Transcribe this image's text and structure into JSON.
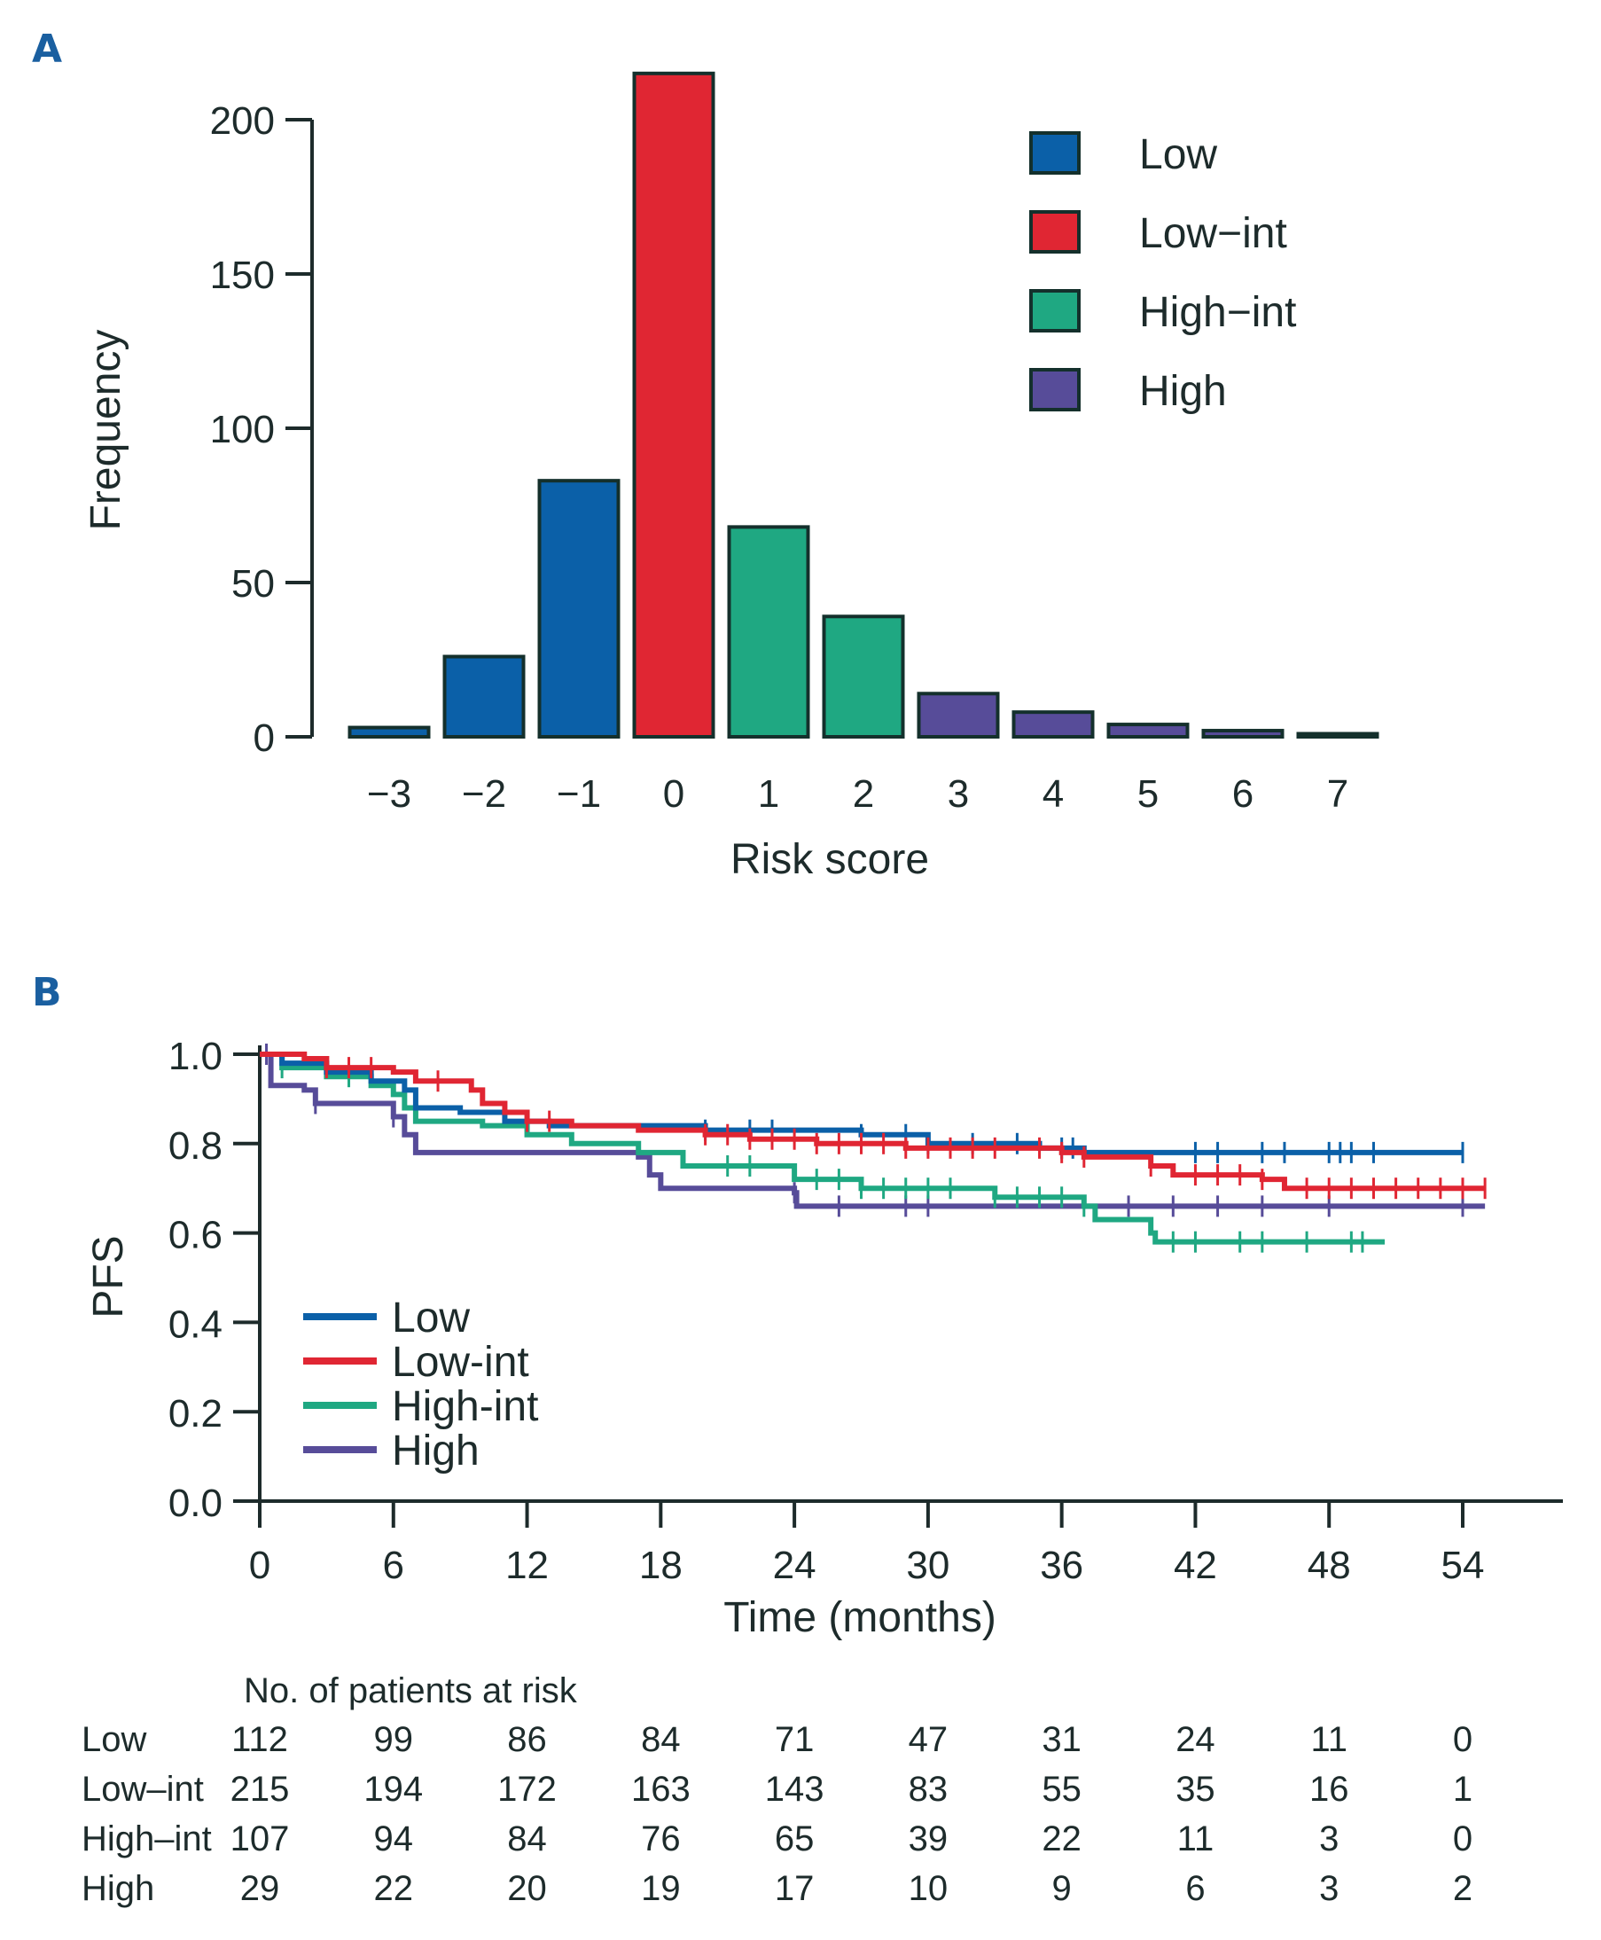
{
  "panels": {
    "a": "A",
    "b": "B"
  },
  "chart_data": [
    {
      "type": "bar",
      "title": "",
      "xlabel": "Risk score",
      "ylabel": "Frequency",
      "ylim": [
        0,
        200
      ],
      "yticks": [
        "0",
        "50",
        "100",
        "150",
        "200"
      ],
      "categories": [
        "−3",
        "−2",
        "−1",
        "0",
        "1",
        "2",
        "3",
        "4",
        "5",
        "6",
        "7"
      ],
      "values": [
        3,
        26,
        83,
        215,
        68,
        39,
        14,
        8,
        4,
        2,
        1
      ],
      "groups": [
        "Low",
        "Low",
        "Low",
        "Low−int",
        "High−int",
        "High−int",
        "High",
        "High",
        "High",
        "High",
        "High"
      ],
      "legend": [
        {
          "label": "Low",
          "color": "#0b60a8"
        },
        {
          "label": "Low−int",
          "color": "#e02633"
        },
        {
          "label": "High−int",
          "color": "#1fa882"
        },
        {
          "label": "High",
          "color": "#574c99"
        }
      ],
      "legend_position": "top-right"
    },
    {
      "type": "line",
      "subtype": "kaplan-meier",
      "xlabel": "Time (months)",
      "ylabel": "PFS",
      "xlim": [
        0,
        54
      ],
      "ylim": [
        0,
        1
      ],
      "xticks": [
        "0",
        "6",
        "12",
        "18",
        "24",
        "30",
        "36",
        "42",
        "48",
        "54"
      ],
      "yticks": [
        "0.0",
        "0.2",
        "0.4",
        "0.6",
        "0.8",
        "1.0"
      ],
      "legend_position": "bottom-left",
      "series": [
        {
          "name": "Low",
          "color": "#0b60a8",
          "steps": [
            [
              0,
              1
            ],
            [
              1,
              0.98
            ],
            [
              3,
              0.96
            ],
            [
              5,
              0.94
            ],
            [
              6.5,
              0.92
            ],
            [
              7,
              0.88
            ],
            [
              9,
              0.87
            ],
            [
              11,
              0.85
            ],
            [
              13,
              0.84
            ],
            [
              20,
              0.83
            ],
            [
              27,
              0.82
            ],
            [
              30,
              0.8
            ],
            [
              35,
              0.79
            ],
            [
              37,
              0.78
            ],
            [
              54,
              0.78
            ]
          ],
          "censors": [
            20,
            22,
            23,
            27,
            29,
            30,
            32,
            34,
            36,
            36.5,
            42,
            43,
            45,
            46,
            48,
            48.5,
            49,
            50,
            54
          ]
        },
        {
          "name": "Low-int",
          "color": "#e02633",
          "steps": [
            [
              0,
              1
            ],
            [
              2,
              0.99
            ],
            [
              3,
              0.97
            ],
            [
              6,
              0.96
            ],
            [
              7,
              0.94
            ],
            [
              9.5,
              0.92
            ],
            [
              10,
              0.89
            ],
            [
              11,
              0.87
            ],
            [
              12,
              0.85
            ],
            [
              14,
              0.84
            ],
            [
              17,
              0.83
            ],
            [
              20,
              0.82
            ],
            [
              22,
              0.81
            ],
            [
              25,
              0.8
            ],
            [
              29,
              0.79
            ],
            [
              36,
              0.78
            ],
            [
              37,
              0.77
            ],
            [
              40,
              0.75
            ],
            [
              41,
              0.73
            ],
            [
              45,
              0.72
            ],
            [
              46,
              0.7
            ],
            [
              55,
              0.7
            ]
          ],
          "censors": [
            3,
            4,
            5,
            8,
            12,
            13,
            20,
            21,
            22,
            23,
            24,
            25,
            26,
            27,
            28,
            29,
            30,
            31,
            32,
            33,
            35,
            36,
            37,
            40,
            42,
            43,
            44,
            45,
            47,
            48,
            49,
            50,
            51,
            52,
            53,
            54,
            55
          ]
        },
        {
          "name": "High-int",
          "color": "#1fa882",
          "steps": [
            [
              0,
              1
            ],
            [
              1,
              0.97
            ],
            [
              3,
              0.95
            ],
            [
              5,
              0.93
            ],
            [
              6,
              0.91
            ],
            [
              6.5,
              0.88
            ],
            [
              7,
              0.85
            ],
            [
              10,
              0.84
            ],
            [
              12,
              0.82
            ],
            [
              14,
              0.8
            ],
            [
              17,
              0.78
            ],
            [
              19,
              0.75
            ],
            [
              24,
              0.72
            ],
            [
              27,
              0.7
            ],
            [
              33,
              0.68
            ],
            [
              37,
              0.66
            ],
            [
              37.5,
              0.63
            ],
            [
              40,
              0.6
            ],
            [
              40.2,
              0.58
            ],
            [
              50.5,
              0.58
            ]
          ],
          "censors": [
            1,
            4,
            21,
            22,
            25,
            26,
            27,
            28,
            29,
            30,
            31,
            33,
            34,
            35,
            36,
            37,
            41,
            42,
            44,
            45,
            47,
            49,
            49.5
          ]
        },
        {
          "name": "High",
          "color": "#574c99",
          "steps": [
            [
              0,
              1
            ],
            [
              0.5,
              0.93
            ],
            [
              2,
              0.92
            ],
            [
              2.5,
              0.89
            ],
            [
              6,
              0.86
            ],
            [
              6.5,
              0.82
            ],
            [
              7,
              0.78
            ],
            [
              17,
              0.77
            ],
            [
              17.5,
              0.73
            ],
            [
              18,
              0.7
            ],
            [
              24,
              0.69
            ],
            [
              24.1,
              0.66
            ],
            [
              55,
              0.66
            ]
          ],
          "censors": [
            0.3,
            2.5,
            6,
            24,
            26,
            29,
            30,
            39,
            41,
            43,
            45,
            48,
            54
          ]
        }
      ],
      "risk_table": {
        "title": "No. of patients at risk",
        "rows": [
          {
            "label": "Low",
            "values": [
              "112",
              "99",
              "86",
              "84",
              "71",
              "47",
              "31",
              "24",
              "11",
              "0"
            ]
          },
          {
            "label": "Low–int",
            "values": [
              "215",
              "194",
              "172",
              "163",
              "143",
              "83",
              "55",
              "35",
              "16",
              "1"
            ]
          },
          {
            "label": "High–int",
            "values": [
              "107",
              "94",
              "84",
              "76",
              "65",
              "39",
              "22",
              "11",
              "3",
              "0"
            ]
          },
          {
            "label": "High",
            "values": [
              "29",
              "22",
              "20",
              "19",
              "17",
              "10",
              "9",
              "6",
              "3",
              "2"
            ]
          }
        ]
      }
    }
  ]
}
